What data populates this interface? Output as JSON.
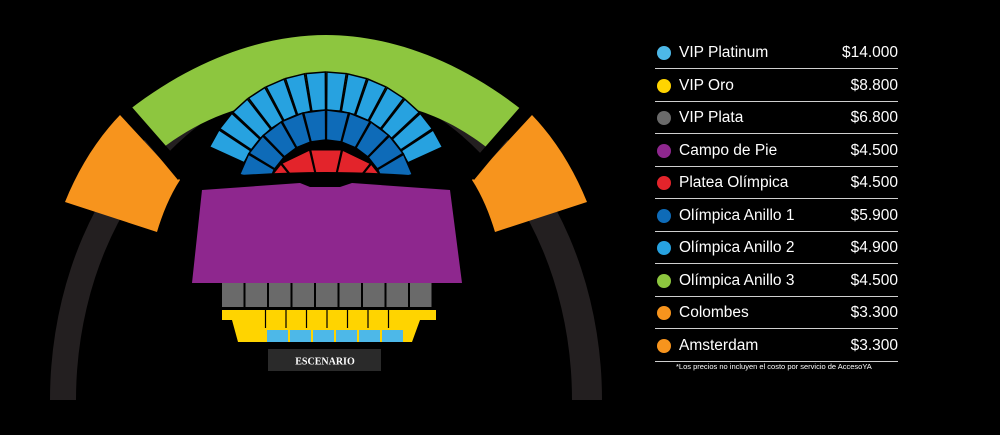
{
  "stage_label": "ESCENARIO",
  "colors": {
    "vip_platinum": "#4db8e8",
    "vip_oro": "#ffd400",
    "vip_plata": "#6a6a6a",
    "campo_de_pie": "#8e278e",
    "platea_olimpica": "#e3242b",
    "anillo_1": "#0e6bb8",
    "anillo_2": "#27a2e0",
    "anillo_3": "#8dc63f",
    "orange": "#f7941d",
    "dark_ring": "#231f20",
    "background": "#000000"
  },
  "legend": [
    {
      "name": "VIP Platinum",
      "price": "$14.000",
      "color": "#4db8e8"
    },
    {
      "name": "VIP Oro",
      "price": "$8.800",
      "color": "#ffd400"
    },
    {
      "name": "VIP Plata",
      "price": "$6.800",
      "color": "#6a6a6a"
    },
    {
      "name": "Campo de Pie",
      "price": "$4.500",
      "color": "#8e278e"
    },
    {
      "name": "Platea Olímpica",
      "price": "$4.500",
      "color": "#e3242b"
    },
    {
      "name": "Olímpica Anillo 1",
      "price": "$5.900",
      "color": "#0e6bb8"
    },
    {
      "name": "Olímpica Anillo 2",
      "price": "$4.900",
      "color": "#27a2e0"
    },
    {
      "name": "Olímpica Anillo 3",
      "price": "$4.500",
      "color": "#8dc63f"
    },
    {
      "name": "Colombes",
      "price": "$3.300",
      "color": "#f7941d"
    },
    {
      "name": "Amsterdam",
      "price": "$3.300",
      "color": "#f7941d"
    }
  ],
  "disclaimer": "*Los precios no incluyen el costo por servicio de AccesoYA"
}
